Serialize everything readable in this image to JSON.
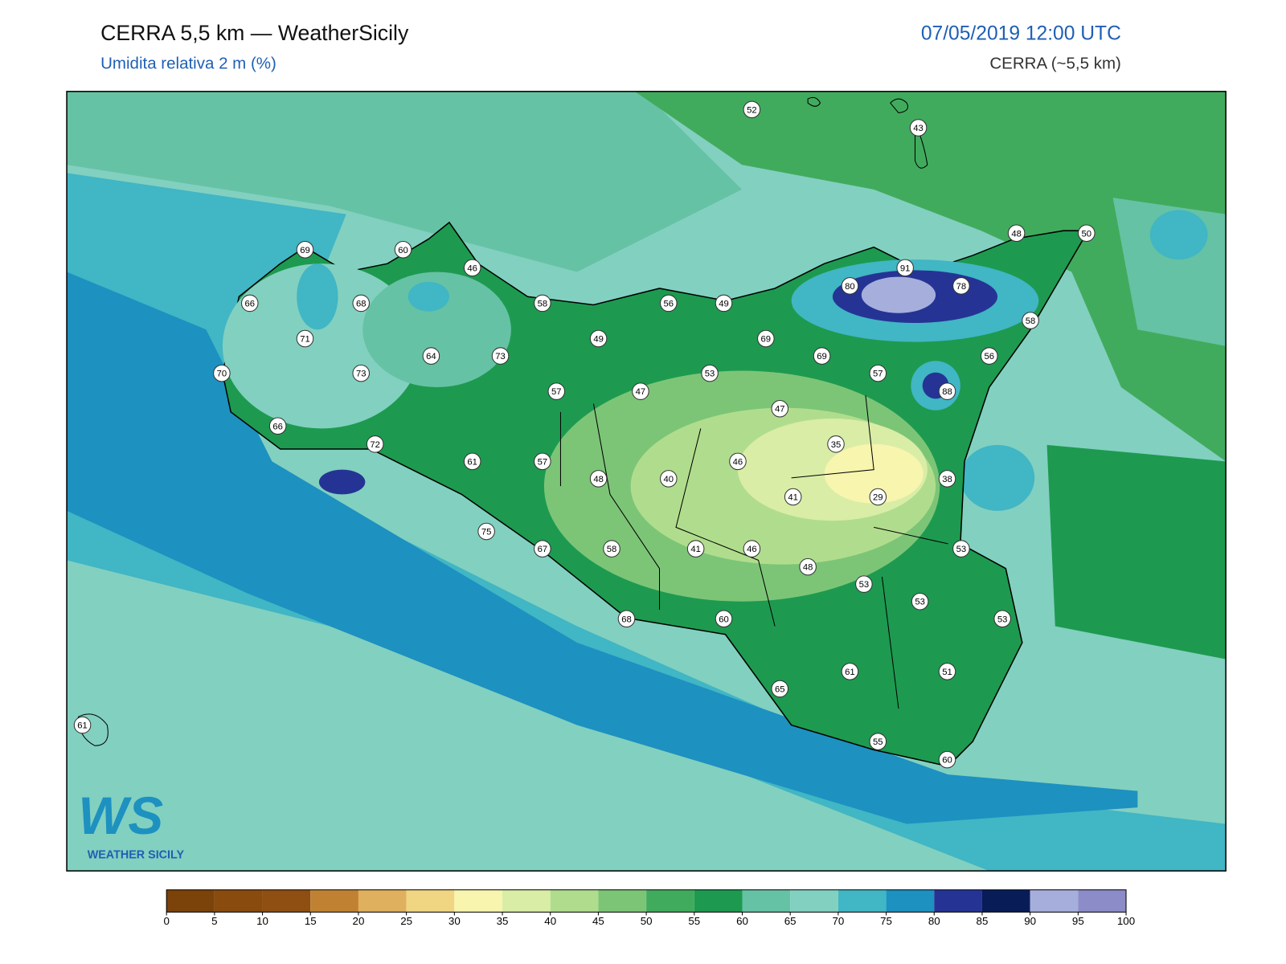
{
  "header": {
    "title": "CERRA 5,5 km — WeatherSicily",
    "subtitle": "Umidita relativa 2 m (%)",
    "date": "07/05/2019 12:00 UTC",
    "model": "CERRA (~5,5 km)"
  },
  "logo": {
    "mark": "WS",
    "name": "WEATHER SICILY"
  },
  "stations": [
    {
      "value": 52
    },
    {
      "value": 43
    },
    {
      "value": 69
    },
    {
      "value": 60
    },
    {
      "value": 46
    },
    {
      "value": 48
    },
    {
      "value": 50
    },
    {
      "value": 66
    },
    {
      "value": 68
    },
    {
      "value": 58
    },
    {
      "value": 56
    },
    {
      "value": 49
    },
    {
      "value": 91
    },
    {
      "value": 80
    },
    {
      "value": 78
    },
    {
      "value": 71
    },
    {
      "value": 49
    },
    {
      "value": 69
    },
    {
      "value": 58
    },
    {
      "value": 70
    },
    {
      "value": 73
    },
    {
      "value": 64
    },
    {
      "value": 73
    },
    {
      "value": 53
    },
    {
      "value": 69
    },
    {
      "value": 56
    },
    {
      "value": 57
    },
    {
      "value": 47
    },
    {
      "value": 57
    },
    {
      "value": 88
    },
    {
      "value": 66
    },
    {
      "value": 47
    },
    {
      "value": 72
    },
    {
      "value": 61
    },
    {
      "value": 57
    },
    {
      "value": 46
    },
    {
      "value": 35
    },
    {
      "value": 48
    },
    {
      "value": 40
    },
    {
      "value": 41
    },
    {
      "value": 29
    },
    {
      "value": 38
    },
    {
      "value": 75
    },
    {
      "value": 67
    },
    {
      "value": 58
    },
    {
      "value": 41
    },
    {
      "value": 46
    },
    {
      "value": 53
    },
    {
      "value": 48
    },
    {
      "value": 53
    },
    {
      "value": 53
    },
    {
      "value": 53
    },
    {
      "value": 68
    },
    {
      "value": 60
    },
    {
      "value": 61
    },
    {
      "value": 51
    },
    {
      "value": 65
    },
    {
      "value": 61
    },
    {
      "value": 55
    },
    {
      "value": 60
    }
  ],
  "colorbar": {
    "ticks": [
      0,
      5,
      10,
      15,
      20,
      25,
      30,
      35,
      40,
      45,
      50,
      55,
      60,
      65,
      70,
      75,
      80,
      85,
      90,
      95,
      100
    ],
    "colors": [
      "#7b420a",
      "#8a4b0f",
      "#8f4e12",
      "#c08232",
      "#dfb05e",
      "#f0d682",
      "#f7f5ae",
      "#d9eda6",
      "#b0dd8d",
      "#7cc577",
      "#41ab5d",
      "#1d9a50",
      "#66c2a4",
      "#82d0c0",
      "#41b6c4",
      "#1d91c0",
      "#253494",
      "#081d58",
      "#a6aedc",
      "#8c8cc8"
    ]
  }
}
